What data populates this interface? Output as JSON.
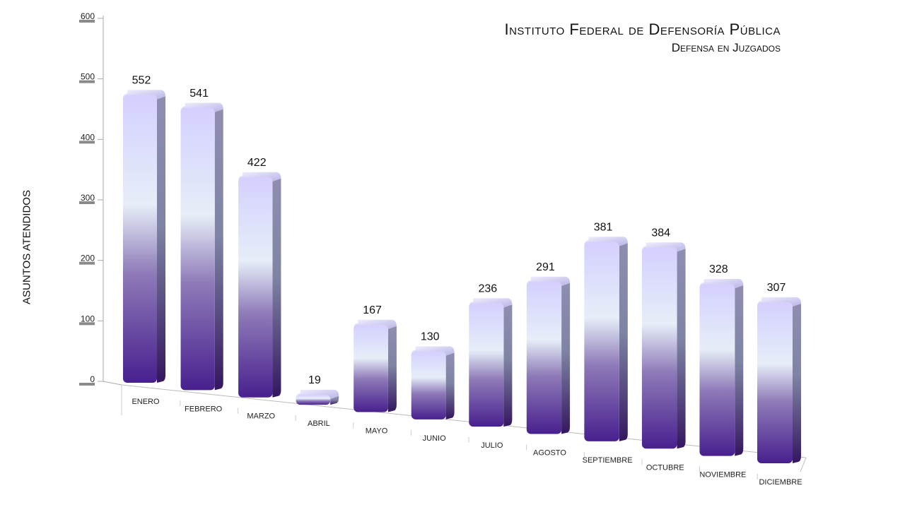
{
  "chart_data": {
    "type": "bar",
    "title": "Instituto Federal de Defensoría Pública",
    "subtitle": "Defensa en Juzgados",
    "ylabel": "ASUNTOS ATENDIDOS",
    "xlabel": "",
    "categories": [
      "ENERO",
      "FEBRERO",
      "MARZO",
      "ABRIL",
      "MAYO",
      "JUNIO",
      "JULIO",
      "AGOSTO",
      "SEPTIEMBRE",
      "OCTUBRE",
      "NOVIEMBRE",
      "DICIEMBRE"
    ],
    "values": [
      552,
      541,
      422,
      19,
      167,
      130,
      236,
      291,
      381,
      384,
      328,
      307
    ],
    "ylim": [
      0,
      600
    ],
    "yticks": [
      "0",
      "100",
      "200",
      "300",
      "400",
      "500",
      "600"
    ],
    "grid": false,
    "legend": "none",
    "colors": {
      "bar_top": "#d6d4ff",
      "bar_mid": "#e4ecf8",
      "bar_bottom": "#4a2590",
      "bar_side": "#5b4a8a",
      "axis": "#999999",
      "tick_shadow": "#888888"
    }
  }
}
